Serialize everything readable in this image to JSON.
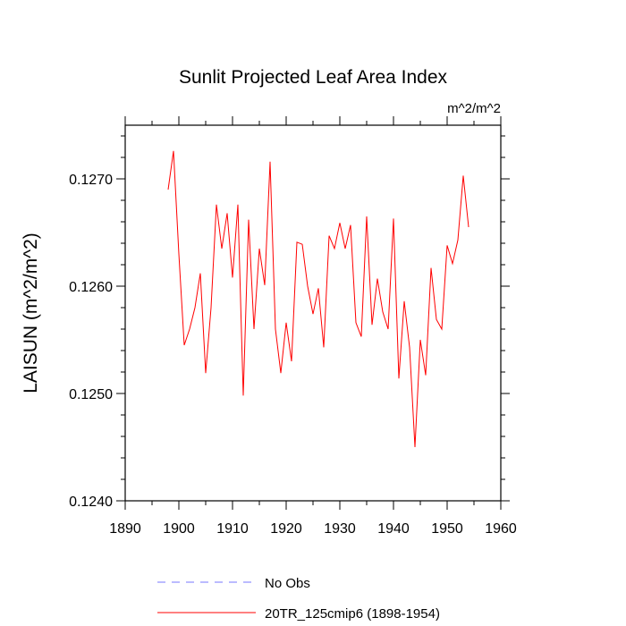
{
  "chart_data": {
    "type": "line",
    "title": "Sunlit Projected Leaf Area Index",
    "units": "m^2/m^2",
    "xlabel": "",
    "ylabel": "LAISUN  (m^2/m^2)",
    "xlim": [
      1890,
      1960
    ],
    "ylim": [
      0.124,
      0.1275
    ],
    "x_ticks": [
      1890,
      1900,
      1910,
      1920,
      1930,
      1940,
      1950,
      1960
    ],
    "x_tick_labels": [
      "1890",
      "1900",
      "1910",
      "1920",
      "1930",
      "1940",
      "1950",
      "1960"
    ],
    "y_ticks": [
      0.124,
      0.125,
      0.126,
      0.127
    ],
    "y_tick_labels": [
      "0.1240",
      "0.1250",
      "0.1260",
      "0.1270"
    ],
    "grid": false,
    "legend": [
      {
        "label": "No Obs",
        "color": "#7777ff",
        "style": "dashed"
      },
      {
        "label": "20TR_125cmip6 (1898-1954)",
        "color": "#ff0000",
        "style": "solid"
      }
    ],
    "series": [
      {
        "name": "20TR_125cmip6 (1898-1954)",
        "color": "#ff0000",
        "x": [
          1898,
          1899,
          1900,
          1901,
          1902,
          1903,
          1904,
          1905,
          1906,
          1907,
          1908,
          1909,
          1910,
          1911,
          1912,
          1913,
          1914,
          1915,
          1916,
          1917,
          1918,
          1919,
          1920,
          1921,
          1922,
          1923,
          1924,
          1925,
          1926,
          1927,
          1928,
          1929,
          1930,
          1931,
          1932,
          1933,
          1934,
          1935,
          1936,
          1937,
          1938,
          1939,
          1940,
          1941,
          1942,
          1943,
          1944,
          1945,
          1946,
          1947,
          1948,
          1949,
          1950,
          1951,
          1952,
          1953,
          1954
        ],
        "values": [
          0.1269,
          0.12726,
          0.1263,
          0.12545,
          0.1256,
          0.1258,
          0.12612,
          0.12519,
          0.1258,
          0.12676,
          0.12635,
          0.12668,
          0.12608,
          0.12676,
          0.12498,
          0.12662,
          0.1256,
          0.12635,
          0.12601,
          0.12716,
          0.1256,
          0.12519,
          0.12566,
          0.1253,
          0.12641,
          0.12639,
          0.126,
          0.12574,
          0.12598,
          0.12543,
          0.12647,
          0.12635,
          0.12659,
          0.12635,
          0.12657,
          0.12566,
          0.12553,
          0.12665,
          0.12564,
          0.12607,
          0.12576,
          0.1256,
          0.12663,
          0.12514,
          0.12586,
          0.12543,
          0.1245,
          0.1255,
          0.12517,
          0.12617,
          0.12569,
          0.1256,
          0.12638,
          0.12621,
          0.12643,
          0.12703,
          0.12655
        ]
      },
      {
        "name": "No Obs",
        "color": "#7777ff",
        "x": [],
        "values": []
      }
    ]
  }
}
